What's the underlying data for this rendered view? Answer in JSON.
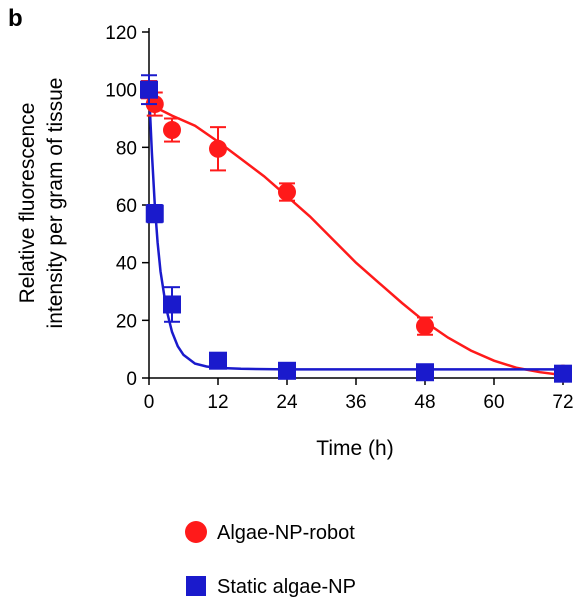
{
  "chart_data": {
    "type": "scatter",
    "panel_label": "b",
    "xlabel": "Time (h)",
    "ylabel_line1": "Relative fluorescence",
    "ylabel_line2": "intensity per gram of tissue",
    "xlim": [
      0,
      72
    ],
    "ylim": [
      0,
      120
    ],
    "x_ticks": [
      0,
      12,
      24,
      36,
      48,
      60,
      72
    ],
    "y_ticks": [
      0,
      20,
      40,
      60,
      80,
      100,
      120
    ],
    "grid": false,
    "legend_position": "bottom",
    "series": [
      {
        "name": "Algae-NP-robot",
        "color": "#ff1a1a",
        "marker": "circle",
        "points": [
          {
            "x": 0,
            "y": 100,
            "err": 3
          },
          {
            "x": 1,
            "y": 95,
            "err": 4
          },
          {
            "x": 4,
            "y": 86,
            "err": 4
          },
          {
            "x": 12,
            "y": 79.5,
            "err": 7.5
          },
          {
            "x": 24,
            "y": 64.5,
            "err": 3
          },
          {
            "x": 48,
            "y": 18,
            "err": 3
          },
          {
            "x": 72,
            "y": 1.5,
            "err": 1
          }
        ],
        "fit_curve": [
          [
            0,
            95
          ],
          [
            4,
            91
          ],
          [
            8,
            87.5
          ],
          [
            12,
            82
          ],
          [
            16,
            76
          ],
          [
            20,
            70
          ],
          [
            24,
            63
          ],
          [
            28,
            56
          ],
          [
            32,
            48
          ],
          [
            36,
            40
          ],
          [
            40,
            33
          ],
          [
            44,
            26
          ],
          [
            48,
            19.5
          ],
          [
            52,
            14
          ],
          [
            56,
            9.5
          ],
          [
            60,
            6
          ],
          [
            64,
            3.5
          ],
          [
            68,
            2
          ],
          [
            72,
            1
          ]
        ]
      },
      {
        "name": "Static algae-NP",
        "color": "#1a1acc",
        "marker": "square",
        "points": [
          {
            "x": 0,
            "y": 100,
            "err": 5
          },
          {
            "x": 1,
            "y": 57,
            "err": 3
          },
          {
            "x": 4,
            "y": 25.5,
            "err": 6
          },
          {
            "x": 12,
            "y": 6,
            "err": 1
          },
          {
            "x": 24,
            "y": 2.5,
            "err": 1
          },
          {
            "x": 48,
            "y": 2,
            "err": 1
          },
          {
            "x": 72,
            "y": 1.5,
            "err": 1
          }
        ],
        "fit_curve": [
          [
            0,
            100
          ],
          [
            0.5,
            78
          ],
          [
            1,
            60
          ],
          [
            1.5,
            47
          ],
          [
            2,
            37
          ],
          [
            3,
            24
          ],
          [
            4,
            16
          ],
          [
            5,
            11
          ],
          [
            6,
            8
          ],
          [
            8,
            5
          ],
          [
            10,
            4
          ],
          [
            12,
            3.5
          ],
          [
            16,
            3.2
          ],
          [
            24,
            3
          ],
          [
            36,
            3
          ],
          [
            48,
            3
          ],
          [
            60,
            3
          ],
          [
            72,
            3
          ]
        ]
      }
    ]
  }
}
